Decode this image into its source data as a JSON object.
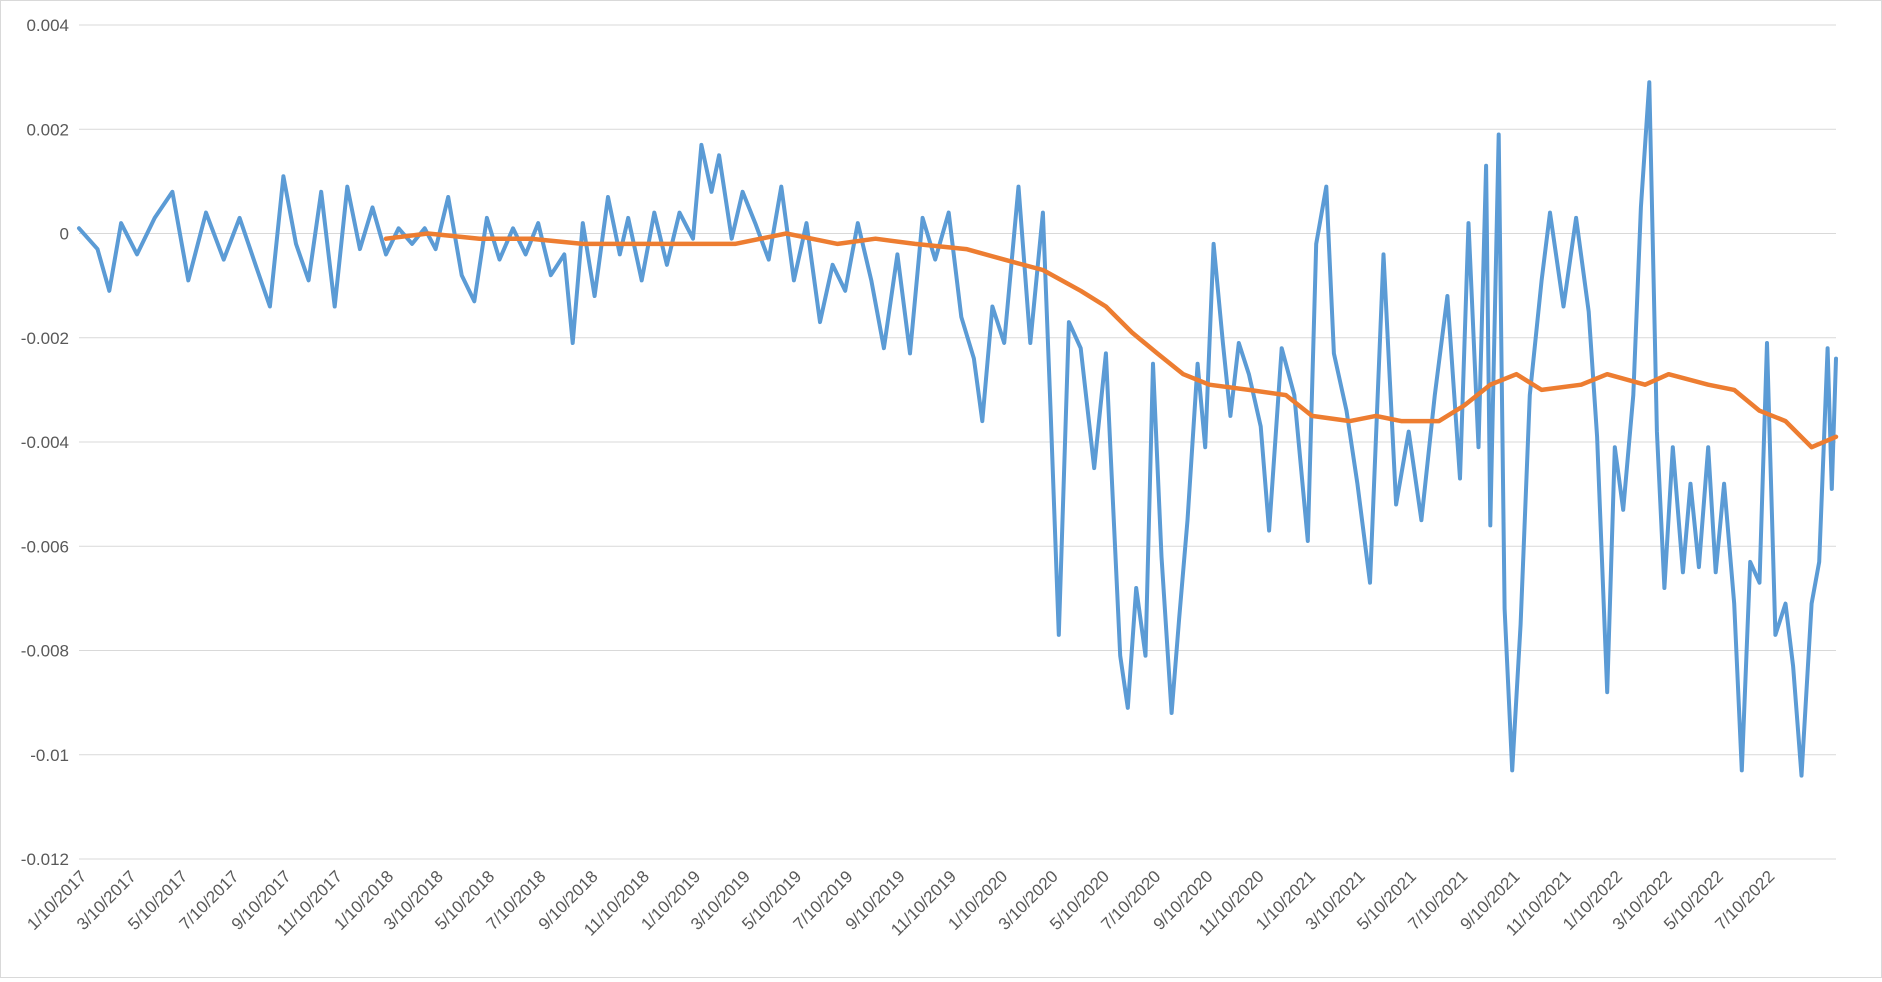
{
  "chart_data": {
    "type": "line",
    "title": "",
    "xlabel": "",
    "ylabel": "",
    "ylim": [
      -0.012,
      0.004
    ],
    "yticks": [
      0.004,
      0.002,
      0,
      -0.002,
      -0.004,
      -0.006,
      -0.008,
      -0.01,
      -0.012
    ],
    "ytick_labels": [
      "0.004",
      "0.002",
      "0",
      "-0.002",
      "-0.004",
      "-0.006",
      "-0.008",
      "-0.01",
      "-0.012"
    ],
    "xlim": [
      "2017-01-10",
      "2022-09-30"
    ],
    "x_tick_labels": [
      "1/10/2017",
      "3/10/2017",
      "5/10/2017",
      "7/10/2017",
      "9/10/2017",
      "11/10/2017",
      "1/10/2018",
      "3/10/2018",
      "5/10/2018",
      "7/10/2018",
      "9/10/2018",
      "11/10/2018",
      "1/10/2019",
      "3/10/2019",
      "5/10/2019",
      "7/10/2019",
      "9/10/2019",
      "11/10/2019",
      "1/10/2020",
      "3/10/2020",
      "5/10/2020",
      "7/10/2020",
      "9/10/2020",
      "11/10/2020",
      "1/10/2021",
      "3/10/2021",
      "5/10/2021",
      "7/10/2021",
      "9/10/2021",
      "11/10/2021",
      "1/10/2022",
      "3/10/2022",
      "5/10/2022",
      "7/10/2022"
    ],
    "x_tick_dates": [
      "2017-01-10",
      "2017-03-10",
      "2017-05-10",
      "2017-07-10",
      "2017-09-10",
      "2017-11-10",
      "2018-01-10",
      "2018-03-10",
      "2018-05-10",
      "2018-07-10",
      "2018-09-10",
      "2018-11-10",
      "2019-01-10",
      "2019-03-10",
      "2019-05-10",
      "2019-07-10",
      "2019-09-10",
      "2019-11-10",
      "2020-01-10",
      "2020-03-10",
      "2020-05-10",
      "2020-07-10",
      "2020-09-10",
      "2020-11-10",
      "2021-01-10",
      "2021-03-10",
      "2021-05-10",
      "2021-07-10",
      "2021-09-10",
      "2021-11-10",
      "2022-01-10",
      "2022-03-10",
      "2022-05-10",
      "2022-07-10"
    ],
    "grid": "horizontal",
    "legend": "none",
    "colors": {
      "series1": "#5b9bd5",
      "series2": "#ed7d31",
      "grid": "#d9d9d9",
      "axis_text": "#595959"
    },
    "series": [
      {
        "points": [
          [
            "2017-01-10",
            0.0001
          ],
          [
            "2017-02-01",
            -0.0003
          ],
          [
            "2017-02-15",
            -0.0011
          ],
          [
            "2017-03-01",
            0.0002
          ],
          [
            "2017-03-20",
            -0.0004
          ],
          [
            "2017-04-10",
            0.0003
          ],
          [
            "2017-05-01",
            0.0008
          ],
          [
            "2017-05-20",
            -0.0009
          ],
          [
            "2017-06-10",
            0.0004
          ],
          [
            "2017-07-01",
            -0.0005
          ],
          [
            "2017-07-20",
            0.0003
          ],
          [
            "2017-08-10",
            -0.0007
          ],
          [
            "2017-08-25",
            -0.0014
          ],
          [
            "2017-09-10",
            0.0011
          ],
          [
            "2017-09-25",
            -0.0002
          ],
          [
            "2017-10-10",
            -0.0009
          ],
          [
            "2017-10-25",
            0.0008
          ],
          [
            "2017-11-10",
            -0.0014
          ],
          [
            "2017-11-25",
            0.0009
          ],
          [
            "2017-12-10",
            -0.0003
          ],
          [
            "2017-12-25",
            0.0005
          ],
          [
            "2018-01-10",
            -0.0004
          ],
          [
            "2018-01-25",
            0.0001
          ],
          [
            "2018-02-10",
            -0.0002
          ],
          [
            "2018-02-25",
            0.0001
          ],
          [
            "2018-03-10",
            -0.0003
          ],
          [
            "2018-03-25",
            0.0007
          ],
          [
            "2018-04-10",
            -0.0008
          ],
          [
            "2018-04-25",
            -0.0013
          ],
          [
            "2018-05-10",
            0.0003
          ],
          [
            "2018-05-25",
            -0.0005
          ],
          [
            "2018-06-10",
            0.0001
          ],
          [
            "2018-06-25",
            -0.0004
          ],
          [
            "2018-07-10",
            0.0002
          ],
          [
            "2018-07-25",
            -0.0008
          ],
          [
            "2018-08-10",
            -0.0004
          ],
          [
            "2018-08-20",
            -0.0021
          ],
          [
            "2018-09-01",
            0.0002
          ],
          [
            "2018-09-15",
            -0.0012
          ],
          [
            "2018-10-01",
            0.0007
          ],
          [
            "2018-10-15",
            -0.0004
          ],
          [
            "2018-10-25",
            0.0003
          ],
          [
            "2018-11-10",
            -0.0009
          ],
          [
            "2018-11-25",
            0.0004
          ],
          [
            "2018-12-10",
            -0.0006
          ],
          [
            "2018-12-25",
            0.0004
          ],
          [
            "2019-01-10",
            -0.0001
          ],
          [
            "2019-01-20",
            0.0017
          ],
          [
            "2019-02-01",
            0.0008
          ],
          [
            "2019-02-10",
            0.0015
          ],
          [
            "2019-02-25",
            -0.0001
          ],
          [
            "2019-03-10",
            0.0008
          ],
          [
            "2019-03-25",
            0.0002
          ],
          [
            "2019-04-10",
            -0.0005
          ],
          [
            "2019-04-25",
            0.0009
          ],
          [
            "2019-05-10",
            -0.0009
          ],
          [
            "2019-05-25",
            0.0002
          ],
          [
            "2019-06-10",
            -0.0017
          ],
          [
            "2019-06-25",
            -0.0006
          ],
          [
            "2019-07-10",
            -0.0011
          ],
          [
            "2019-07-25",
            0.0002
          ],
          [
            "2019-08-10",
            -0.0009
          ],
          [
            "2019-08-25",
            -0.0022
          ],
          [
            "2019-09-10",
            -0.0004
          ],
          [
            "2019-09-25",
            -0.0023
          ],
          [
            "2019-10-10",
            0.0003
          ],
          [
            "2019-10-25",
            -0.0005
          ],
          [
            "2019-11-10",
            0.0004
          ],
          [
            "2019-11-25",
            -0.0016
          ],
          [
            "2019-12-10",
            -0.0024
          ],
          [
            "2019-12-20",
            -0.0036
          ],
          [
            "2020-01-01",
            -0.0014
          ],
          [
            "2020-01-15",
            -0.0021
          ],
          [
            "2020-02-01",
            0.0009
          ],
          [
            "2020-02-15",
            -0.0021
          ],
          [
            "2020-03-01",
            0.0004
          ],
          [
            "2020-03-10",
            -0.0033
          ],
          [
            "2020-03-20",
            -0.0077
          ],
          [
            "2020-04-01",
            -0.0017
          ],
          [
            "2020-04-15",
            -0.0022
          ],
          [
            "2020-05-01",
            -0.0045
          ],
          [
            "2020-05-15",
            -0.0023
          ],
          [
            "2020-06-01",
            -0.0081
          ],
          [
            "2020-06-10",
            -0.0091
          ],
          [
            "2020-06-20",
            -0.0068
          ],
          [
            "2020-07-01",
            -0.0081
          ],
          [
            "2020-07-10",
            -0.0025
          ],
          [
            "2020-07-20",
            -0.0062
          ],
          [
            "2020-08-01",
            -0.0092
          ],
          [
            "2020-08-10",
            -0.0074
          ],
          [
            "2020-08-20",
            -0.0055
          ],
          [
            "2020-09-01",
            -0.0025
          ],
          [
            "2020-09-10",
            -0.0041
          ],
          [
            "2020-09-20",
            -0.0002
          ],
          [
            "2020-10-01",
            -0.0021
          ],
          [
            "2020-10-10",
            -0.0035
          ],
          [
            "2020-10-20",
            -0.0021
          ],
          [
            "2020-11-01",
            -0.0027
          ],
          [
            "2020-11-15",
            -0.0037
          ],
          [
            "2020-11-25",
            -0.0057
          ],
          [
            "2020-12-10",
            -0.0022
          ],
          [
            "2020-12-25",
            -0.0031
          ],
          [
            "2021-01-10",
            -0.0059
          ],
          [
            "2021-01-20",
            -0.0002
          ],
          [
            "2021-02-01",
            0.0009
          ],
          [
            "2021-02-10",
            -0.0023
          ],
          [
            "2021-02-25",
            -0.0034
          ],
          [
            "2021-03-10",
            -0.0048
          ],
          [
            "2021-03-25",
            -0.0067
          ],
          [
            "2021-04-10",
            -0.0004
          ],
          [
            "2021-04-25",
            -0.0052
          ],
          [
            "2021-05-10",
            -0.0038
          ],
          [
            "2021-05-25",
            -0.0055
          ],
          [
            "2021-06-10",
            -0.0031
          ],
          [
            "2021-06-25",
            -0.0012
          ],
          [
            "2021-07-10",
            -0.0047
          ],
          [
            "2021-07-20",
            0.0002
          ],
          [
            "2021-08-01",
            -0.0041
          ],
          [
            "2021-08-10",
            0.0013
          ],
          [
            "2021-08-15",
            -0.0056
          ],
          [
            "2021-08-25",
            0.0019
          ],
          [
            "2021-09-01",
            -0.0072
          ],
          [
            "2021-09-10",
            -0.0103
          ],
          [
            "2021-09-20",
            -0.0075
          ],
          [
            "2021-10-01",
            -0.0031
          ],
          [
            "2021-10-15",
            -0.0009
          ],
          [
            "2021-10-25",
            0.0004
          ],
          [
            "2021-11-10",
            -0.0014
          ],
          [
            "2021-11-25",
            0.0003
          ],
          [
            "2021-12-10",
            -0.0015
          ],
          [
            "2021-12-20",
            -0.0039
          ],
          [
            "2022-01-01",
            -0.0088
          ],
          [
            "2022-01-10",
            -0.0041
          ],
          [
            "2022-01-20",
            -0.0053
          ],
          [
            "2022-02-01",
            -0.0031
          ],
          [
            "2022-02-10",
            0.0005
          ],
          [
            "2022-02-20",
            0.0029
          ],
          [
            "2022-03-01",
            -0.0038
          ],
          [
            "2022-03-10",
            -0.0068
          ],
          [
            "2022-03-20",
            -0.0041
          ],
          [
            "2022-04-01",
            -0.0065
          ],
          [
            "2022-04-10",
            -0.0048
          ],
          [
            "2022-04-20",
            -0.0064
          ],
          [
            "2022-05-01",
            -0.0041
          ],
          [
            "2022-05-10",
            -0.0065
          ],
          [
            "2022-05-20",
            -0.0048
          ],
          [
            "2022-06-01",
            -0.0071
          ],
          [
            "2022-06-10",
            -0.0103
          ],
          [
            "2022-06-20",
            -0.0063
          ],
          [
            "2022-07-01",
            -0.0067
          ],
          [
            "2022-07-10",
            -0.0021
          ],
          [
            "2022-07-20",
            -0.0077
          ],
          [
            "2022-08-01",
            -0.0071
          ],
          [
            "2022-08-10",
            -0.0083
          ],
          [
            "2022-08-20",
            -0.0104
          ],
          [
            "2022-09-01",
            -0.0071
          ],
          [
            "2022-09-10",
            -0.0063
          ],
          [
            "2022-09-20",
            -0.0022
          ],
          [
            "2022-09-25",
            -0.0049
          ],
          [
            "2022-09-30",
            -0.0024
          ]
        ]
      },
      {
        "points": [
          [
            "2018-01-10",
            -0.0001
          ],
          [
            "2018-03-01",
            0.0
          ],
          [
            "2018-05-01",
            -0.0001
          ],
          [
            "2018-07-01",
            -0.0001
          ],
          [
            "2018-09-01",
            -0.0002
          ],
          [
            "2018-11-01",
            -0.0002
          ],
          [
            "2019-01-01",
            -0.0002
          ],
          [
            "2019-03-01",
            -0.0002
          ],
          [
            "2019-05-01",
            0.0
          ],
          [
            "2019-07-01",
            -0.0002
          ],
          [
            "2019-08-15",
            -0.0001
          ],
          [
            "2019-10-01",
            -0.0002
          ],
          [
            "2019-12-01",
            -0.0003
          ],
          [
            "2020-01-15",
            -0.0005
          ],
          [
            "2020-03-01",
            -0.0007
          ],
          [
            "2020-04-15",
            -0.0011
          ],
          [
            "2020-05-15",
            -0.0014
          ],
          [
            "2020-06-15",
            -0.0019
          ],
          [
            "2020-07-15",
            -0.0023
          ],
          [
            "2020-08-15",
            -0.0027
          ],
          [
            "2020-09-15",
            -0.0029
          ],
          [
            "2020-11-01",
            -0.003
          ],
          [
            "2020-12-15",
            -0.0031
          ],
          [
            "2021-01-15",
            -0.0035
          ],
          [
            "2021-03-01",
            -0.0036
          ],
          [
            "2021-04-01",
            -0.0035
          ],
          [
            "2021-05-01",
            -0.0036
          ],
          [
            "2021-06-15",
            -0.0036
          ],
          [
            "2021-07-15",
            -0.0033
          ],
          [
            "2021-08-15",
            -0.0029
          ],
          [
            "2021-09-15",
            -0.0027
          ],
          [
            "2021-10-15",
            -0.003
          ],
          [
            "2021-12-01",
            -0.0029
          ],
          [
            "2022-01-01",
            -0.0027
          ],
          [
            "2022-02-15",
            -0.0029
          ],
          [
            "2022-03-15",
            -0.0027
          ],
          [
            "2022-05-01",
            -0.0029
          ],
          [
            "2022-06-01",
            -0.003
          ],
          [
            "2022-07-01",
            -0.0034
          ],
          [
            "2022-08-01",
            -0.0036
          ],
          [
            "2022-09-01",
            -0.0041
          ],
          [
            "2022-09-30",
            -0.0039
          ]
        ]
      }
    ]
  }
}
